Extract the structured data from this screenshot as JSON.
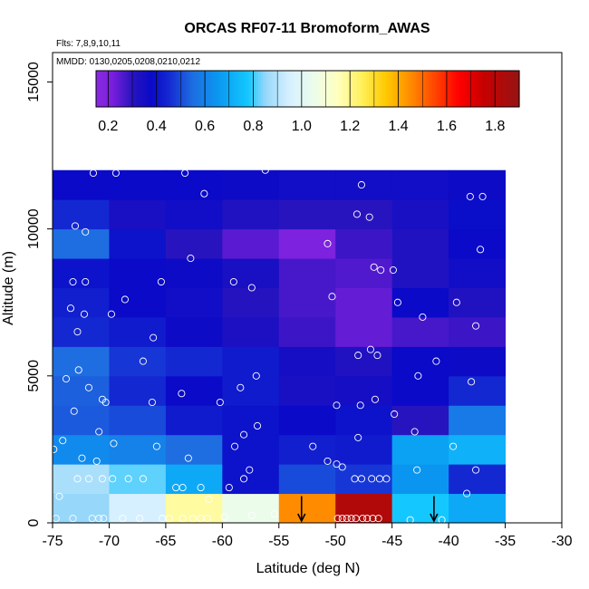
{
  "chart_data": {
    "type": "heatmap",
    "title": "ORCAS RF07-11 Bromoform_AWAS",
    "flights_label": "Flts: 7,8,9,10,11",
    "dates_label": "MMDD: 0130,0205,0208,0210,0212",
    "xlabel": "Latitude (deg N)",
    "ylabel": "Altitude (m)",
    "xlim": [
      -75,
      -30
    ],
    "ylim": [
      0,
      16000
    ],
    "x_ticks": [
      -75,
      -70,
      -65,
      -60,
      -55,
      -50,
      -45,
      -40,
      -35,
      -30
    ],
    "x_tick_labels": [
      "-75",
      "-70",
      "-65",
      "-60",
      "-55",
      "-50",
      "-45",
      "-40",
      "-35",
      "-30"
    ],
    "y_ticks": [
      0,
      5000,
      10000,
      15000
    ],
    "y_tick_labels": [
      "0",
      "5000",
      "10000",
      "15000"
    ],
    "colorbar": {
      "min": 0.15,
      "max": 1.9,
      "ticks": [
        0.2,
        0.4,
        0.6,
        0.8,
        1.0,
        1.2,
        1.4,
        1.6,
        1.8
      ],
      "tick_labels": [
        "0.2",
        "0.4",
        "0.6",
        "0.8",
        "1.0",
        "1.2",
        "1.4",
        "1.6",
        "1.8"
      ]
    },
    "lat_bin_edges": [
      -75,
      -70,
      -65,
      -60,
      -55,
      -50,
      -45,
      -40,
      -35
    ],
    "alt_bin_edges": [
      0,
      1000,
      2000,
      3000,
      4000,
      5000,
      6000,
      7000,
      8000,
      9000,
      10000,
      11000,
      12000
    ],
    "cells": [
      [
        0.85,
        0.95,
        1.18,
        1.05,
        null,
        1.82,
        0.78,
        0.7
      ],
      [
        0.88,
        0.82,
        0.7,
        0.4,
        0.5,
        0.47,
        0.65,
        0.45
      ],
      [
        0.62,
        0.6,
        0.55,
        0.4,
        0.43,
        0.42,
        0.68,
        0.72
      ],
      [
        0.52,
        0.5,
        0.42,
        0.4,
        0.38,
        0.4,
        0.3,
        0.58
      ],
      [
        0.53,
        0.45,
        0.38,
        0.42,
        0.34,
        0.35,
        0.38,
        0.45
      ],
      [
        0.55,
        0.47,
        0.45,
        0.42,
        0.35,
        0.32,
        0.38,
        0.37
      ],
      [
        0.45,
        0.42,
        0.37,
        0.33,
        0.28,
        0.24,
        0.27,
        0.28
      ],
      [
        0.43,
        0.38,
        0.36,
        0.31,
        0.27,
        0.24,
        0.38,
        0.32
      ],
      [
        0.4,
        0.38,
        0.37,
        0.34,
        0.27,
        0.26,
        0.32,
        0.36
      ],
      [
        0.55,
        0.4,
        0.3,
        0.25,
        0.2,
        0.28,
        0.32,
        0.38
      ],
      [
        0.45,
        0.34,
        0.36,
        0.32,
        0.3,
        0.3,
        0.34,
        0.39
      ],
      [
        0.38,
        0.38,
        0.38,
        0.37,
        0.36,
        0.36,
        0.36,
        0.37
      ]
    ],
    "highlight_orange": {
      "lat_bin": 4,
      "alt_bin": 0,
      "color": "#ff8c00"
    },
    "arrows": [
      {
        "lat": -53.0,
        "alt_top": 600,
        "alt_bottom": 0
      },
      {
        "lat": -41.3,
        "alt_top": 600,
        "alt_bottom": 0
      }
    ],
    "samples": [
      [
        -74.7,
        150
      ],
      [
        -73.2,
        150
      ],
      [
        -71.5,
        150
      ],
      [
        -70.9,
        150
      ],
      [
        -70.5,
        150
      ],
      [
        -68.8,
        150
      ],
      [
        -67.3,
        150
      ],
      [
        -65.3,
        150
      ],
      [
        -64.7,
        150
      ],
      [
        -63.5,
        150
      ],
      [
        -62.6,
        150
      ],
      [
        -61.9,
        150
      ],
      [
        -61.3,
        150
      ],
      [
        -59.8,
        200
      ],
      [
        -57.4,
        250
      ],
      [
        -55.4,
        300
      ],
      [
        -49.8,
        150
      ],
      [
        -49.4,
        150
      ],
      [
        -49.0,
        150
      ],
      [
        -48.6,
        150
      ],
      [
        -48.2,
        150
      ],
      [
        -47.6,
        150
      ],
      [
        -47.2,
        150
      ],
      [
        -46.7,
        150
      ],
      [
        -46.2,
        150
      ],
      [
        -43.4,
        100
      ],
      [
        -40.6,
        100
      ],
      [
        -74.4,
        900
      ],
      [
        -72.8,
        1500
      ],
      [
        -71.8,
        1500
      ],
      [
        -70.6,
        1500
      ],
      [
        -69.7,
        1500
      ],
      [
        -68.3,
        1500
      ],
      [
        -67.0,
        1500
      ],
      [
        -64.1,
        1200
      ],
      [
        -63.5,
        1200
      ],
      [
        -61.9,
        1200
      ],
      [
        -61.2,
        800
      ],
      [
        -59.4,
        1200
      ],
      [
        -58.1,
        1500
      ],
      [
        -57.6,
        1800
      ],
      [
        -50.7,
        2100
      ],
      [
        -49.9,
        2000
      ],
      [
        -49.4,
        1900
      ],
      [
        -48.3,
        1500
      ],
      [
        -47.7,
        1500
      ],
      [
        -46.8,
        1500
      ],
      [
        -46.1,
        1500
      ],
      [
        -45.5,
        1500
      ],
      [
        -42.8,
        1800
      ],
      [
        -37.6,
        1800
      ],
      [
        -39.6,
        2600
      ],
      [
        -38.4,
        1000
      ],
      [
        -74.9,
        2500
      ],
      [
        -74.1,
        2800
      ],
      [
        -72.4,
        2200
      ],
      [
        -71.1,
        2100
      ],
      [
        -69.6,
        2700
      ],
      [
        -65.8,
        2600
      ],
      [
        -63.0,
        2200
      ],
      [
        -58.9,
        2600
      ],
      [
        -58.1,
        3000
      ],
      [
        -56.9,
        3300
      ],
      [
        -52.0,
        2600
      ],
      [
        -48.0,
        2900
      ],
      [
        -44.8,
        3700
      ],
      [
        -43.0,
        3100
      ],
      [
        -70.9,
        3100
      ],
      [
        -73.1,
        3800
      ],
      [
        -70.6,
        4200
      ],
      [
        -70.3,
        4100
      ],
      [
        -66.2,
        4100
      ],
      [
        -63.6,
        4400
      ],
      [
        -60.2,
        4100
      ],
      [
        -58.4,
        4600
      ],
      [
        -57.0,
        5000
      ],
      [
        -49.9,
        4000
      ],
      [
        -47.8,
        4000
      ],
      [
        -46.5,
        4200
      ],
      [
        -73.8,
        4900
      ],
      [
        -72.7,
        5200
      ],
      [
        -71.8,
        4600
      ],
      [
        -67.0,
        5500
      ],
      [
        -48.0,
        5700
      ],
      [
        -46.9,
        5900
      ],
      [
        -46.3,
        5700
      ],
      [
        -42.7,
        5000
      ],
      [
        -41.1,
        5500
      ],
      [
        -38.0,
        4800
      ],
      [
        -72.8,
        6500
      ],
      [
        -73.4,
        7300
      ],
      [
        -72.2,
        7100
      ],
      [
        -69.8,
        7100
      ],
      [
        -68.6,
        7600
      ],
      [
        -66.1,
        6300
      ],
      [
        -42.3,
        7000
      ],
      [
        -39.3,
        7500
      ],
      [
        -37.6,
        6700
      ],
      [
        -50.3,
        7700
      ],
      [
        -44.5,
        7500
      ],
      [
        -73.2,
        8200
      ],
      [
        -72.1,
        8200
      ],
      [
        -65.4,
        8200
      ],
      [
        -59.0,
        8200
      ],
      [
        -57.4,
        8000
      ],
      [
        -46.6,
        8700
      ],
      [
        -46.0,
        8600
      ],
      [
        -44.9,
        8600
      ],
      [
        -37.2,
        9300
      ],
      [
        -62.8,
        9000
      ],
      [
        -50.7,
        9500
      ],
      [
        -73.0,
        10100
      ],
      [
        -72.1,
        9900
      ],
      [
        -48.1,
        10500
      ],
      [
        -47.0,
        10400
      ],
      [
        -37.0,
        11100
      ],
      [
        -71.4,
        11900
      ],
      [
        -69.4,
        11900
      ],
      [
        -63.3,
        11900
      ],
      [
        -61.6,
        11200
      ],
      [
        -47.7,
        11500
      ],
      [
        -56.2,
        12000
      ],
      [
        -38.1,
        11100
      ]
    ]
  }
}
